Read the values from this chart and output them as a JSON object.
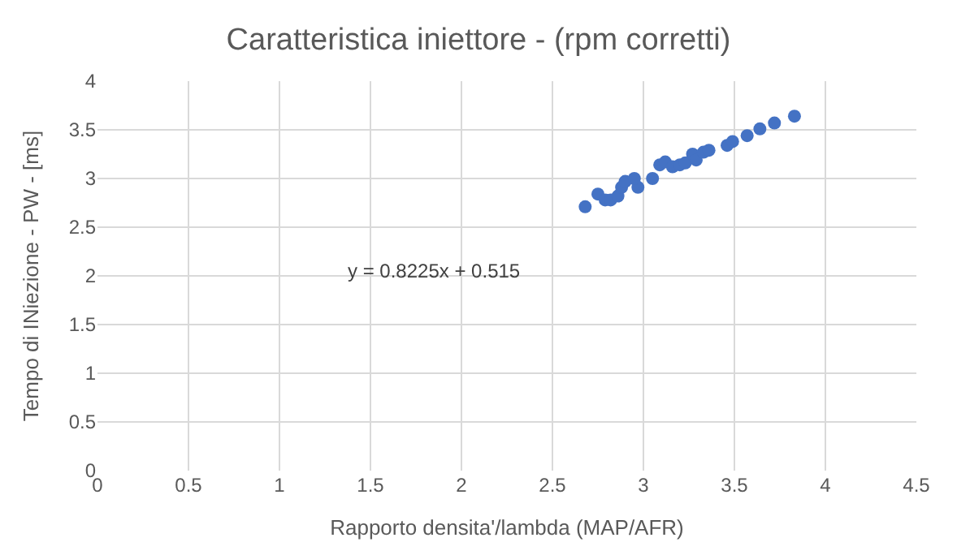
{
  "chart_data": {
    "type": "scatter",
    "title": "Caratteristica iniettore - (rpm corretti)",
    "xlabel": "Rapporto densita'/lambda (MAP/AFR)",
    "ylabel": "Tempo di INiezione - PW - [ms]",
    "x": [
      2.68,
      2.75,
      2.79,
      2.82,
      2.86,
      2.88,
      2.9,
      2.97,
      2.95,
      3.05,
      3.09,
      3.12,
      3.16,
      3.2,
      3.23,
      3.27,
      3.29,
      3.33,
      3.36,
      3.46,
      3.49,
      3.57,
      3.64,
      3.72,
      3.83
    ],
    "series": [
      {
        "color": "#4472c4",
        "values": [
          2.71,
          2.84,
          2.78,
          2.78,
          2.82,
          2.91,
          2.97,
          2.91,
          3.0,
          3.0,
          3.14,
          3.17,
          3.12,
          3.14,
          3.16,
          3.25,
          3.19,
          3.27,
          3.29,
          3.34,
          3.38,
          3.44,
          3.51,
          3.57,
          3.64
        ]
      }
    ],
    "annotations": [
      "y = 0.8225x + 0.515"
    ],
    "xlim": [
      0,
      4.5
    ],
    "xticks": [
      0,
      0.5,
      1,
      1.5,
      2,
      2.5,
      3,
      3.5,
      4,
      4.5
    ],
    "ylim": [
      0,
      4
    ],
    "yticks": [
      0,
      0.5,
      1,
      1.5,
      2,
      2.5,
      3,
      3.5,
      4
    ],
    "grid": true,
    "marker": "circle",
    "legend": false
  }
}
